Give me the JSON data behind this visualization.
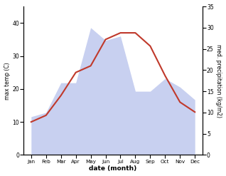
{
  "months": [
    "Jan",
    "Feb",
    "Mar",
    "Apr",
    "May",
    "Jun",
    "Jul",
    "Aug",
    "Sep",
    "Oct",
    "Nov",
    "Dec"
  ],
  "temperature": [
    10,
    12,
    18,
    25,
    27,
    35,
    37,
    37,
    33,
    24,
    16,
    13
  ],
  "precipitation": [
    9,
    10,
    17,
    17,
    30,
    27,
    28,
    15,
    15,
    18,
    16,
    13
  ],
  "temp_color": "#c0392b",
  "precip_fill_color": "#c8d0f0",
  "temp_ylim": [
    0,
    45
  ],
  "precip_ylim": [
    0,
    35
  ],
  "temp_yticks": [
    0,
    10,
    20,
    30,
    40
  ],
  "precip_yticks": [
    0,
    5,
    10,
    15,
    20,
    25,
    30,
    35
  ],
  "ylabel_left": "max temp (C)",
  "ylabel_right": "med. precipitation (kg/m2)",
  "xlabel": "date (month)",
  "bg_color": "#ffffff"
}
